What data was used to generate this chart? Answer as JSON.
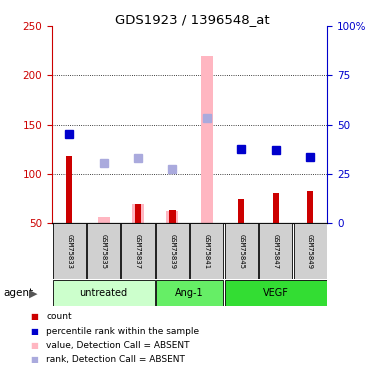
{
  "title": "GDS1923 / 1396548_at",
  "samples": [
    "GSM75833",
    "GSM75835",
    "GSM75837",
    "GSM75839",
    "GSM75841",
    "GSM75845",
    "GSM75847",
    "GSM75849"
  ],
  "count_values": [
    118,
    null,
    69,
    63,
    null,
    75,
    81,
    83
  ],
  "rank_values": [
    141,
    null,
    null,
    null,
    null,
    125,
    124,
    117
  ],
  "absent_value_values": [
    null,
    56,
    69,
    62,
    220,
    null,
    null,
    null
  ],
  "absent_rank_values": [
    null,
    111,
    116,
    105,
    157,
    null,
    null,
    null
  ],
  "ylim_left": [
    50,
    250
  ],
  "ylim_right": [
    0,
    100
  ],
  "left_yticks": [
    50,
    100,
    150,
    200,
    250
  ],
  "right_yticklabels": [
    "0",
    "25",
    "50",
    "75",
    "100%"
  ],
  "right_yticks": [
    0,
    25,
    50,
    75,
    100
  ],
  "count_color": "#CC0000",
  "rank_color": "#0000CC",
  "absent_value_color": "#FFB6C1",
  "absent_rank_color": "#AAAADD",
  "dotted_lines": [
    100,
    150,
    200
  ],
  "group_info": [
    {
      "label": "untreated",
      "start": 0,
      "end": 2,
      "color": "#CCFFCC"
    },
    {
      "label": "Ang-1",
      "start": 3,
      "end": 4,
      "color": "#66EE66"
    },
    {
      "label": "VEGF",
      "start": 5,
      "end": 7,
      "color": "#33DD33"
    }
  ],
  "legend_items": [
    {
      "color": "#CC0000",
      "label": "count"
    },
    {
      "color": "#0000CC",
      "label": "percentile rank within the sample"
    },
    {
      "color": "#FFB6C1",
      "label": "value, Detection Call = ABSENT"
    },
    {
      "color": "#AAAADD",
      "label": "rank, Detection Call = ABSENT"
    }
  ]
}
